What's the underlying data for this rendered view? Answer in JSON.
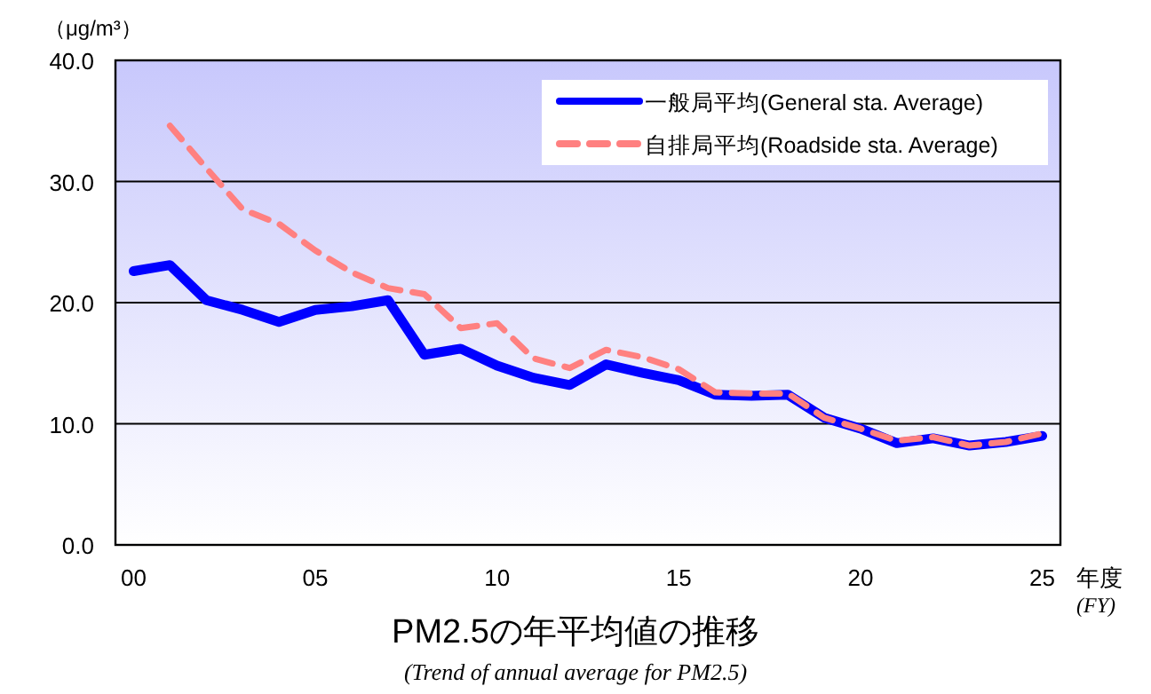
{
  "chart_data": {
    "type": "line",
    "title": "PM2.5の年平均値の推移",
    "subtitle": "(Trend of annual average for PM2.5)",
    "xlabel": "年度",
    "ylabel": "（μg/m³）",
    "annotations": [
      "(FY)"
    ],
    "categories": [
      "00",
      null,
      null,
      null,
      null,
      "05",
      null,
      null,
      null,
      null,
      "10",
      null,
      null,
      null,
      null,
      "15",
      null,
      null,
      null,
      null,
      "20",
      null,
      null,
      null,
      null,
      "25"
    ],
    "series": [
      {
        "name": "一般局平均(General sta. Average)",
        "color": "#0000ff",
        "line_style": "solid",
        "values": [
          22.6,
          23.1,
          20.2,
          19.4,
          18.4,
          19.4,
          19.7,
          20.2,
          15.7,
          16.2,
          14.8,
          13.8,
          13.2,
          14.9,
          14.2,
          13.6,
          12.4,
          12.3,
          12.4,
          10.5,
          9.6,
          8.4,
          8.8,
          8.2,
          8.5,
          9.0
        ]
      },
      {
        "name": "自排局平均(Roadside sta. Average)",
        "color": "#ff8080",
        "line_style": "dashed",
        "values": [
          null,
          34.6,
          31.1,
          27.7,
          26.5,
          24.3,
          22.5,
          21.2,
          20.7,
          17.9,
          18.3,
          15.4,
          14.6,
          16.1,
          15.5,
          14.5,
          12.6,
          12.5,
          12.5,
          10.5,
          9.6,
          8.6,
          8.9,
          8.2,
          8.5,
          9.2
        ]
      }
    ],
    "ylim": [
      0,
      40
    ],
    "yticks": [
      {
        "value": 0,
        "label": "0.0"
      },
      {
        "value": 10,
        "label": "10.0"
      },
      {
        "value": 20,
        "label": "20.0"
      },
      {
        "value": 30,
        "label": "30.0"
      },
      {
        "value": 40,
        "label": "40.0"
      }
    ],
    "grid": "y",
    "legend": "top right",
    "marker": "none"
  }
}
